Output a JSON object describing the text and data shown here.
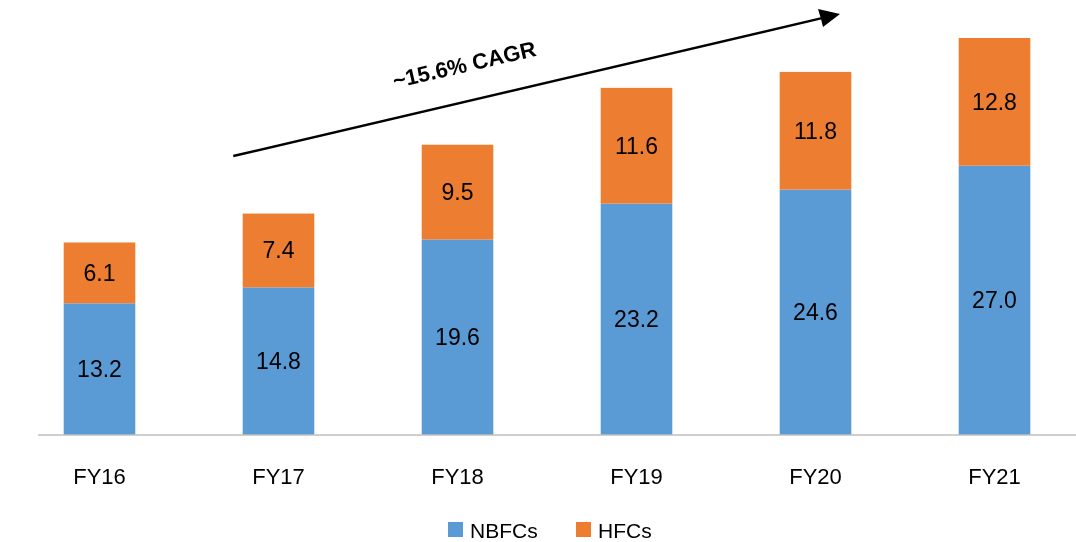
{
  "chart_data": {
    "type": "bar",
    "stacked": true,
    "categories": [
      "FY16",
      "FY17",
      "FY18",
      "FY19",
      "FY20",
      "FY21"
    ],
    "series": [
      {
        "name": "NBFCs",
        "color": "#5b9bd5",
        "values": [
          13.2,
          14.8,
          19.6,
          23.2,
          24.6,
          27.0
        ],
        "value_labels": [
          "13.2",
          "14.8",
          "19.6",
          "23.2",
          "24.6",
          "27.0"
        ]
      },
      {
        "name": "HFCs",
        "color": "#ed7d31",
        "values": [
          6.1,
          7.4,
          9.5,
          11.6,
          11.8,
          12.8
        ],
        "value_labels": [
          "6.1",
          "7.4",
          "9.5",
          "11.6",
          "11.8",
          "12.8"
        ]
      }
    ],
    "ylim": [
      0,
      40
    ],
    "tick_labels": "x",
    "legend": "bottom",
    "annotations": [
      "~15.6% CAGR"
    ]
  }
}
